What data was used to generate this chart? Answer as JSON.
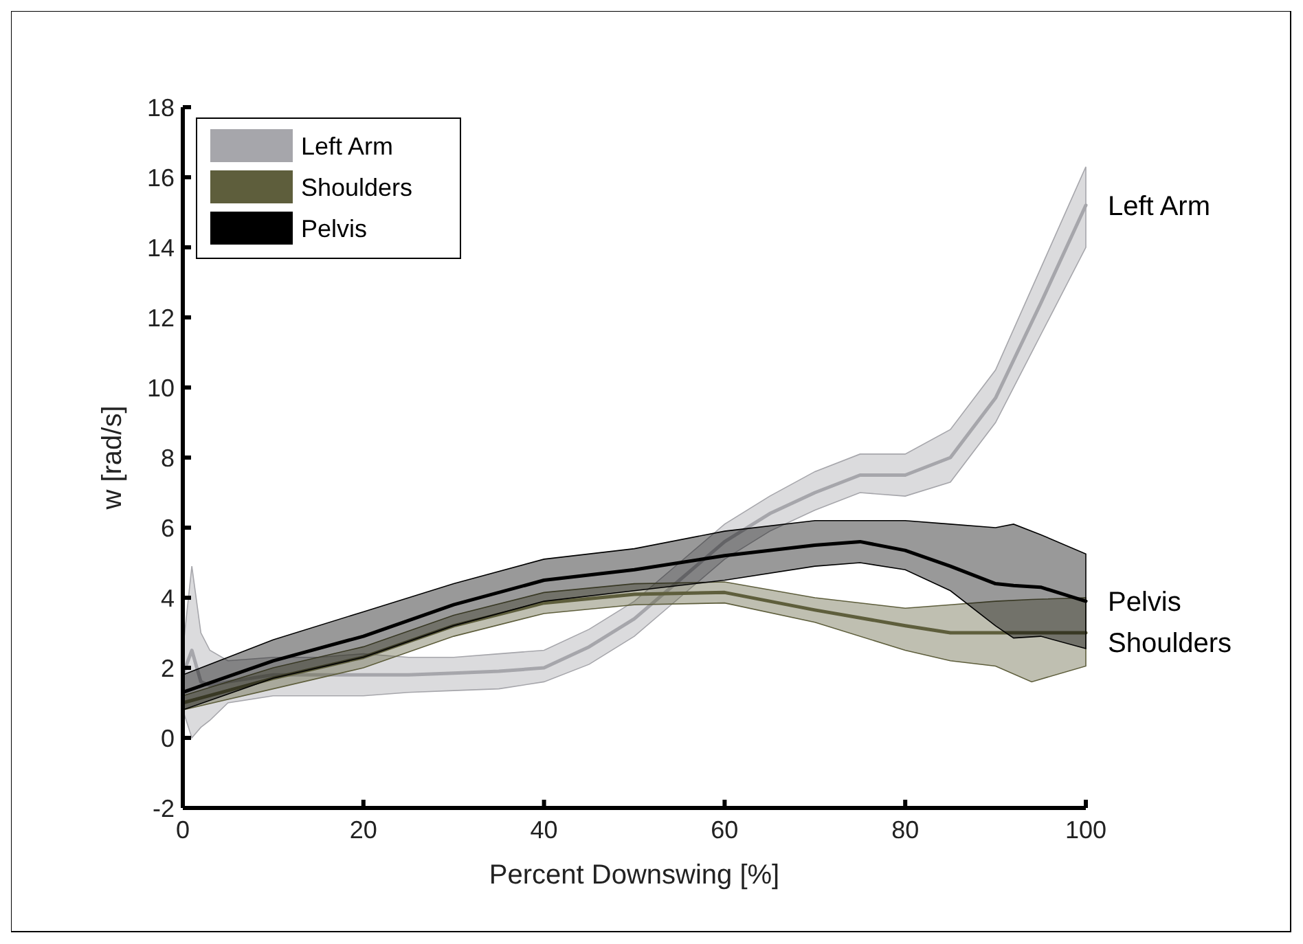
{
  "chart_data": {
    "type": "line",
    "xlabel": "Percent Downswing [%]",
    "ylabel": "w [rad/s]",
    "xlim": [
      0,
      100
    ],
    "xticks": [
      0,
      20,
      40,
      60,
      80,
      100
    ],
    "ylim": [
      -2,
      18
    ],
    "yticks": [
      -2,
      0,
      2,
      4,
      6,
      8,
      10,
      12,
      14,
      16,
      18
    ],
    "grid": false,
    "legend": "top left",
    "marker": "none",
    "line_style": "solid",
    "series": [
      {
        "name": "Left Arm",
        "color": "#a6a6ab",
        "x": [
          0,
          1,
          2,
          3,
          5,
          10,
          15,
          20,
          25,
          30,
          35,
          40,
          45,
          50,
          55,
          60,
          65,
          70,
          75,
          80,
          85,
          90,
          95,
          100
        ],
        "values": [
          1.8,
          2.5,
          1.6,
          1.5,
          1.6,
          1.8,
          1.8,
          1.8,
          1.8,
          1.85,
          1.9,
          2.0,
          2.6,
          3.4,
          4.5,
          5.6,
          6.4,
          7.0,
          7.5,
          7.5,
          8.0,
          9.7,
          12.4,
          15.2
        ],
        "lower": [
          0.8,
          0.0,
          0.3,
          0.5,
          1.0,
          1.2,
          1.2,
          1.2,
          1.3,
          1.35,
          1.4,
          1.6,
          2.1,
          2.9,
          4.0,
          5.1,
          5.9,
          6.5,
          7.0,
          6.9,
          7.3,
          9.0,
          11.5,
          14.0
        ],
        "upper": [
          2.5,
          4.9,
          3.0,
          2.5,
          2.2,
          2.3,
          2.3,
          2.4,
          2.3,
          2.3,
          2.4,
          2.5,
          3.1,
          3.9,
          5.0,
          6.1,
          6.9,
          7.6,
          8.1,
          8.1,
          8.8,
          10.5,
          13.4,
          16.3
        ]
      },
      {
        "name": "Shoulders",
        "color": "#5e5e3c",
        "x": [
          0,
          10,
          20,
          30,
          40,
          50,
          60,
          70,
          80,
          85,
          90,
          94,
          100
        ],
        "values": [
          1.0,
          1.7,
          2.3,
          3.2,
          3.85,
          4.1,
          4.15,
          3.65,
          3.2,
          3.0,
          3.0,
          3.0,
          3.0
        ],
        "lower": [
          0.8,
          1.4,
          2.0,
          2.9,
          3.55,
          3.8,
          3.85,
          3.3,
          2.5,
          2.2,
          2.05,
          1.6,
          2.05
        ],
        "upper": [
          1.2,
          2.0,
          2.6,
          3.5,
          4.15,
          4.4,
          4.45,
          4.0,
          3.7,
          3.8,
          3.9,
          3.95,
          4.0
        ]
      },
      {
        "name": "Pelvis",
        "color": "#000000",
        "x": [
          0,
          10,
          20,
          30,
          40,
          50,
          60,
          70,
          75,
          80,
          85,
          90,
          92,
          95,
          100
        ],
        "values": [
          1.3,
          2.2,
          2.9,
          3.8,
          4.5,
          4.8,
          5.2,
          5.5,
          5.6,
          5.35,
          4.9,
          4.4,
          4.35,
          4.3,
          3.9
        ],
        "lower": [
          0.8,
          1.7,
          2.3,
          3.2,
          3.9,
          4.2,
          4.5,
          4.9,
          5.0,
          4.8,
          4.2,
          3.2,
          2.85,
          2.9,
          2.55
        ],
        "upper": [
          1.8,
          2.8,
          3.6,
          4.4,
          5.1,
          5.4,
          5.9,
          6.2,
          6.2,
          6.2,
          6.1,
          6.0,
          6.1,
          5.8,
          5.25
        ]
      }
    ]
  }
}
